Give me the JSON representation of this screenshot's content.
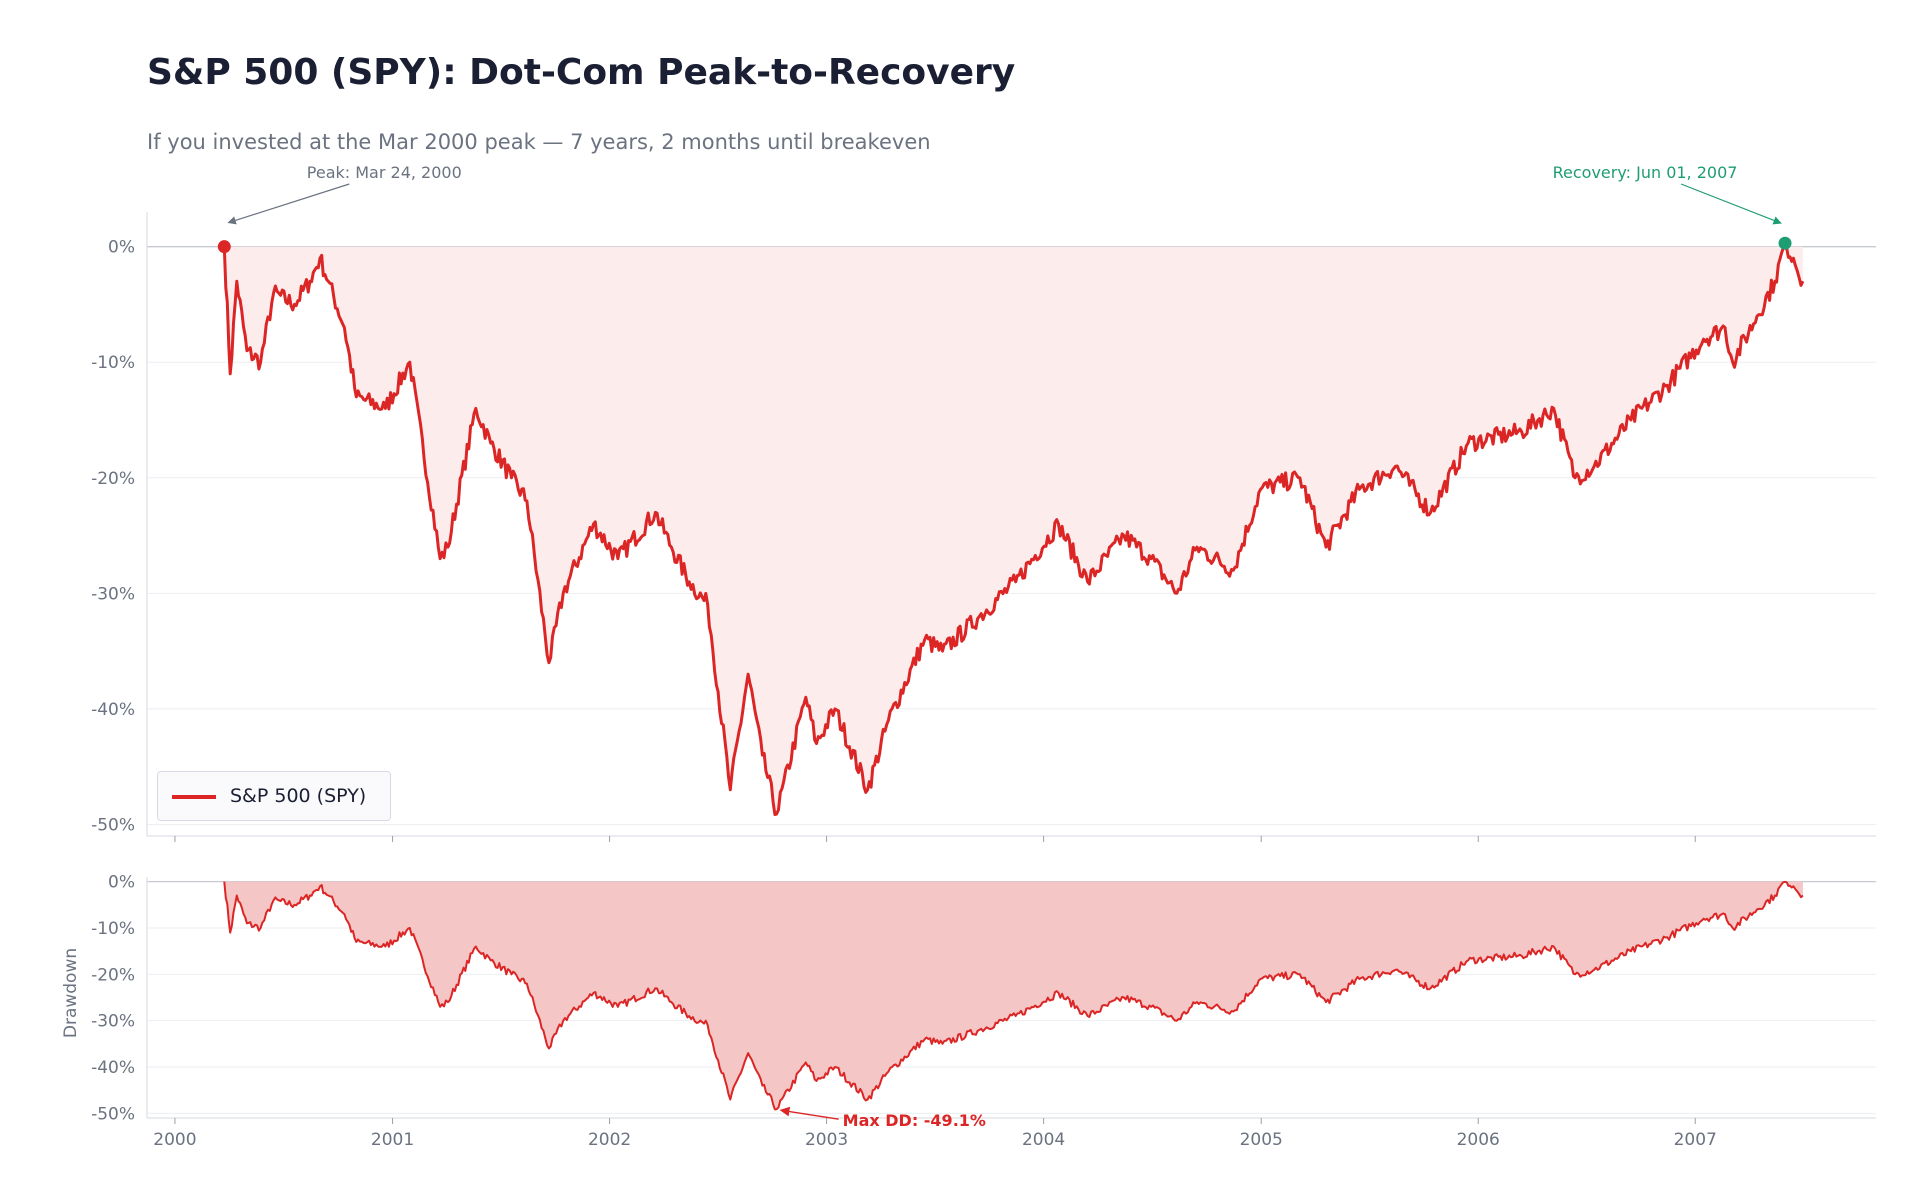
{
  "title": "S&P 500 (SPY): Dot-Com Peak-to-Recovery",
  "subtitle": "If you invested at the Mar 2000 peak — 7 years, 2 months until breakeven",
  "colors": {
    "line": "#dc2626",
    "fill_top": "#fdecec",
    "fill_bottom": "#f5c6c6",
    "peak_marker": "#dc2626",
    "recovery_marker": "#1f9d72",
    "peak_annotation": "#6b7280",
    "recovery_annotation": "#1f9d72",
    "maxdd_annotation": "#dc2626"
  },
  "chart_data": [
    {
      "type": "line",
      "panel": "top",
      "series": [
        {
          "name": "S&P 500 (SPY)"
        }
      ],
      "legend": {
        "label": "S&P 500 (SPY)",
        "position": "lower-left"
      },
      "ylabel": "",
      "ylim": [
        -51,
        3
      ],
      "yticks": [
        0,
        -10,
        -20,
        -30,
        -40,
        -50
      ],
      "ytick_labels": [
        "0%",
        "-10%",
        "-20%",
        "-30%",
        "-40%",
        "-50%"
      ],
      "grid": true,
      "annotations": {
        "peak": {
          "label": "Peak: Mar 24, 2000",
          "x": "2000-03-24",
          "y": 0
        },
        "recovery": {
          "label": "Recovery: Jun 01, 2007",
          "x": "2007-06-01",
          "y": 0.3
        }
      }
    },
    {
      "type": "area",
      "panel": "bottom",
      "ylabel": "Drawdown",
      "ylim": [
        -51,
        1
      ],
      "yticks": [
        0,
        -10,
        -20,
        -30,
        -40,
        -50
      ],
      "ytick_labels": [
        "0%",
        "-10%",
        "-20%",
        "-30%",
        "-40%",
        "-50%"
      ],
      "xlim": [
        "1999-11-15",
        "2007-11-01"
      ],
      "xtick_labels": [
        "2000",
        "2001",
        "2002",
        "2003",
        "2004",
        "2005",
        "2006",
        "2007"
      ],
      "grid": true,
      "annotations": {
        "max_drawdown": {
          "label": "Max DD: -49.1%",
          "x": "2002-10-09",
          "y": -49.1
        }
      }
    }
  ],
  "series_points": {
    "x": [
      "2000-03-24",
      "2000-04-03",
      "2000-04-14",
      "2000-05-01",
      "2000-05-24",
      "2000-06-15",
      "2000-07-20",
      "2000-08-15",
      "2000-09-01",
      "2000-09-15",
      "2000-10-12",
      "2000-11-01",
      "2000-12-20",
      "2001-01-30",
      "2001-03-22",
      "2001-04-04",
      "2001-05-21",
      "2001-06-15",
      "2001-07-20",
      "2001-08-15",
      "2001-09-21",
      "2001-10-15",
      "2001-12-05",
      "2002-01-15",
      "2002-03-19",
      "2002-04-15",
      "2002-05-15",
      "2002-06-15",
      "2002-07-23",
      "2002-08-22",
      "2002-09-15",
      "2002-10-09",
      "2002-11-27",
      "2002-12-15",
      "2003-01-15",
      "2003-03-11",
      "2003-04-15",
      "2003-06-15",
      "2003-07-15",
      "2003-09-15",
      "2003-11-15",
      "2004-01-26",
      "2004-03-15",
      "2004-05-15",
      "2004-06-30",
      "2004-08-12",
      "2004-09-15",
      "2004-11-15",
      "2004-12-31",
      "2005-03-07",
      "2005-04-20",
      "2005-06-15",
      "2005-08-15",
      "2005-10-13",
      "2005-12-15",
      "2006-03-15",
      "2006-05-08",
      "2006-06-13",
      "2006-07-15",
      "2006-09-15",
      "2006-11-15",
      "2007-01-15",
      "2007-02-20",
      "2007-03-05",
      "2007-04-15",
      "2007-05-15",
      "2007-06-01",
      "2007-06-15",
      "2007-07-01"
    ],
    "drawdown": [
      0,
      -11,
      -3,
      -9,
      -10,
      -4,
      -5,
      -3,
      -1,
      -3,
      -7,
      -13,
      -14,
      -10,
      -27,
      -26,
      -14,
      -17,
      -20,
      -22,
      -36,
      -30,
      -24,
      -27,
      -23,
      -26,
      -29,
      -31,
      -47,
      -37,
      -44,
      -49.1,
      -39,
      -43,
      -40,
      -47,
      -41,
      -34,
      -35,
      -32,
      -29,
      -24,
      -29,
      -25,
      -27,
      -30,
      -26,
      -28,
      -21,
      -20,
      -26,
      -21,
      -19,
      -23,
      -17,
      -16,
      -14,
      -20,
      -19,
      -15,
      -12,
      -8,
      -7,
      -10,
      -6,
      -3,
      0.3,
      -1,
      -3
    ]
  }
}
